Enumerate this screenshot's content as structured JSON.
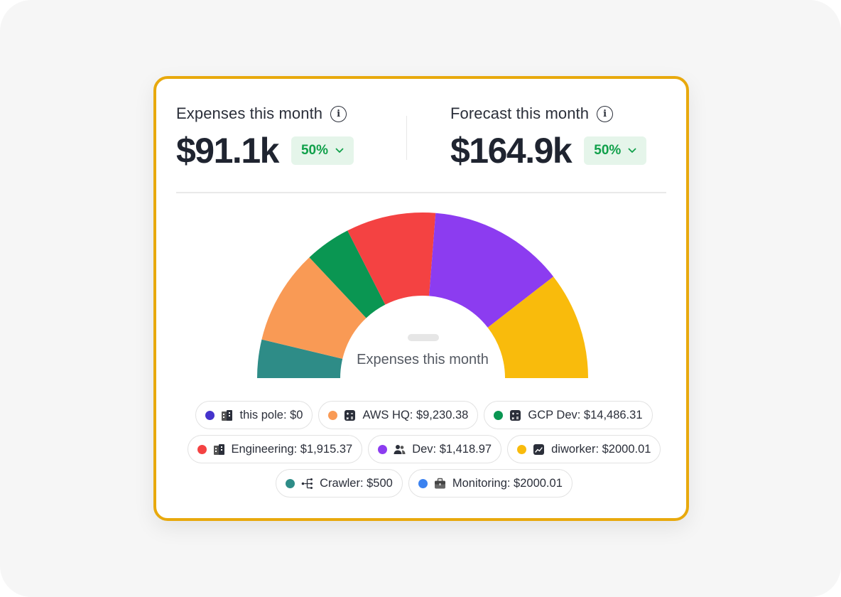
{
  "expenses": {
    "label": "Expenses this month",
    "value": "$91.1k",
    "badge": "50%"
  },
  "forecast": {
    "label": "Forecast this month",
    "value": "$164.9k",
    "badge": "50%"
  },
  "gauge": {
    "center_label": "Expenses this month"
  },
  "legend": [
    {
      "label": "this pole: $0",
      "color": "#4533cc",
      "icon": "building-icon"
    },
    {
      "label": "AWS HQ: $9,230.38",
      "color": "#f99a55",
      "icon": "calculator-icon"
    },
    {
      "label": "GCP Dev: $14,486.31",
      "color": "#0a9652",
      "icon": "calculator-icon"
    },
    {
      "label": "Engineering: $1,915.37",
      "color": "#f44242",
      "icon": "building-icon"
    },
    {
      "label": "Dev: $1,418.97",
      "color": "#8c3cf0",
      "icon": "users-icon"
    },
    {
      "label": "diworker: $2000.01",
      "color": "#f9bb0c",
      "icon": "chart-icon"
    },
    {
      "label": "Crawler: $500",
      "color": "#2e8c87",
      "icon": "tree-icon"
    },
    {
      "label": "Monitoring: $2000.01",
      "color": "#3b82f0",
      "icon": "briefcase-icon"
    }
  ],
  "chart_data": {
    "type": "pie",
    "variant": "semi-donut",
    "segments": [
      {
        "color": "#2e8c87",
        "fraction": 0.075
      },
      {
        "color": "#f99a55",
        "fraction": 0.185
      },
      {
        "color": "#0a9652",
        "fraction": 0.09
      },
      {
        "color": "#f44242",
        "fraction": 0.175
      },
      {
        "color": "#8c3cf0",
        "fraction": 0.265
      },
      {
        "color": "#f9bb0c",
        "fraction": 0.21
      }
    ]
  }
}
